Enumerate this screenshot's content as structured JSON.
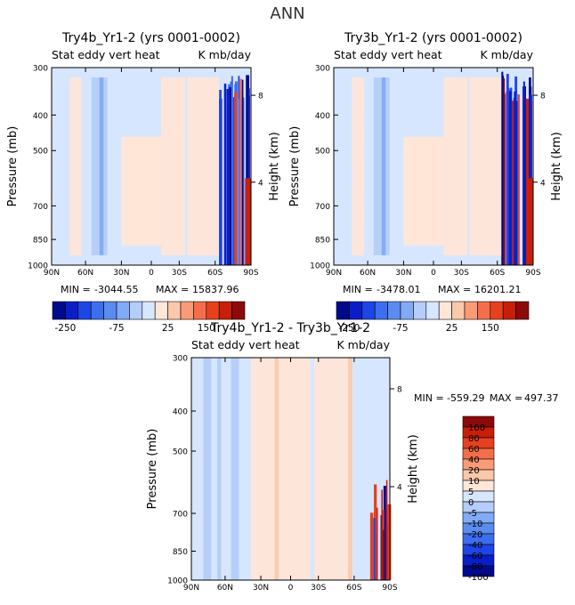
{
  "figure_title": "ANN",
  "chart_data": [
    {
      "type": "heatmap",
      "id": "panel_a",
      "title": "Try4b_Yr1-2 (yrs 0001-0002)",
      "subtitle_left": "Stat eddy vert heat",
      "subtitle_right": "K mb/day",
      "xlabel": "",
      "ylabel": "Pressure (mb)",
      "ylabel_right": "Height (km)",
      "x_ticks": [
        "90N",
        "60N",
        "30N",
        "0",
        "30S",
        "60S",
        "90S"
      ],
      "y_ticks": [
        "300",
        "400",
        "500",
        "700",
        "850",
        "1000"
      ],
      "y_ticks_right": [
        "8",
        "4"
      ],
      "stats": {
        "min_label": "MIN =",
        "min": "-3044.55",
        "max_label": "MAX =",
        "max": "15837.96"
      },
      "colorbar_labels": [
        "-250",
        "-75",
        "25",
        "150"
      ]
    },
    {
      "type": "heatmap",
      "id": "panel_b",
      "title": "Try3b_Yr1-2 (yrs 0001-0002)",
      "subtitle_left": "Stat eddy vert heat",
      "subtitle_right": "K mb/day",
      "xlabel": "",
      "ylabel": "Pressure (mb)",
      "ylabel_right": "Height (km)",
      "x_ticks": [
        "90N",
        "60N",
        "30N",
        "0",
        "30S",
        "60S",
        "90S"
      ],
      "y_ticks": [
        "300",
        "400",
        "500",
        "700",
        "850",
        "1000"
      ],
      "y_ticks_right": [
        "8",
        "4"
      ],
      "stats": {
        "min_label": "MIN =",
        "min": "-3478.01",
        "max_label": "MAX =",
        "max": "16201.21"
      },
      "colorbar_labels": [
        "-250",
        "-75",
        "25",
        "150"
      ]
    },
    {
      "type": "heatmap",
      "id": "panel_diff",
      "title": "Try4b_Yr1-2 - Try3b_Yr1-2",
      "subtitle_left": "Stat eddy vert heat",
      "subtitle_right": "K mb/day",
      "xlabel": "",
      "ylabel": "Pressure (mb)",
      "ylabel_right": "Height (km)",
      "x_ticks": [
        "90N",
        "60N",
        "30N",
        "0",
        "30S",
        "60S",
        "90S"
      ],
      "y_ticks": [
        "300",
        "400",
        "500",
        "700",
        "850",
        "1000"
      ],
      "y_ticks_right": [
        "8",
        "4"
      ],
      "stats": {
        "min_label": "MIN =",
        "min": "-559.29",
        "max_label": "MAX =",
        "max": "497.37"
      },
      "colorbar_labels": [
        "100",
        "80",
        "60",
        "40",
        "20",
        "10",
        "5",
        "0",
        "-5",
        "-10",
        "-20",
        "-40",
        "-60",
        "-80",
        "-100"
      ]
    }
  ],
  "colors": {
    "scale_ab": [
      "#000a8a",
      "#0a1ec8",
      "#1e46e6",
      "#3c6ef0",
      "#5a8cf0",
      "#82aaf5",
      "#b4cdfa",
      "#d7e6ff",
      "#ffe6d7",
      "#fcc8aa",
      "#fa9b78",
      "#f56e4b",
      "#e6411e",
      "#c81e0a",
      "#8c0a0a"
    ],
    "scale_diff": [
      "#8c0a0a",
      "#c81e0a",
      "#e6411e",
      "#f56e4b",
      "#fa9b78",
      "#fcc8aa",
      "#ffe6d7",
      "#d7e6ff",
      "#b4cdfa",
      "#82aaf5",
      "#5a8cf0",
      "#3c6ef0",
      "#1e46e6",
      "#0a1ec8",
      "#000a8a"
    ],
    "bg_blue": "#d7e6ff",
    "bg_orange": "#ffe6d7"
  }
}
